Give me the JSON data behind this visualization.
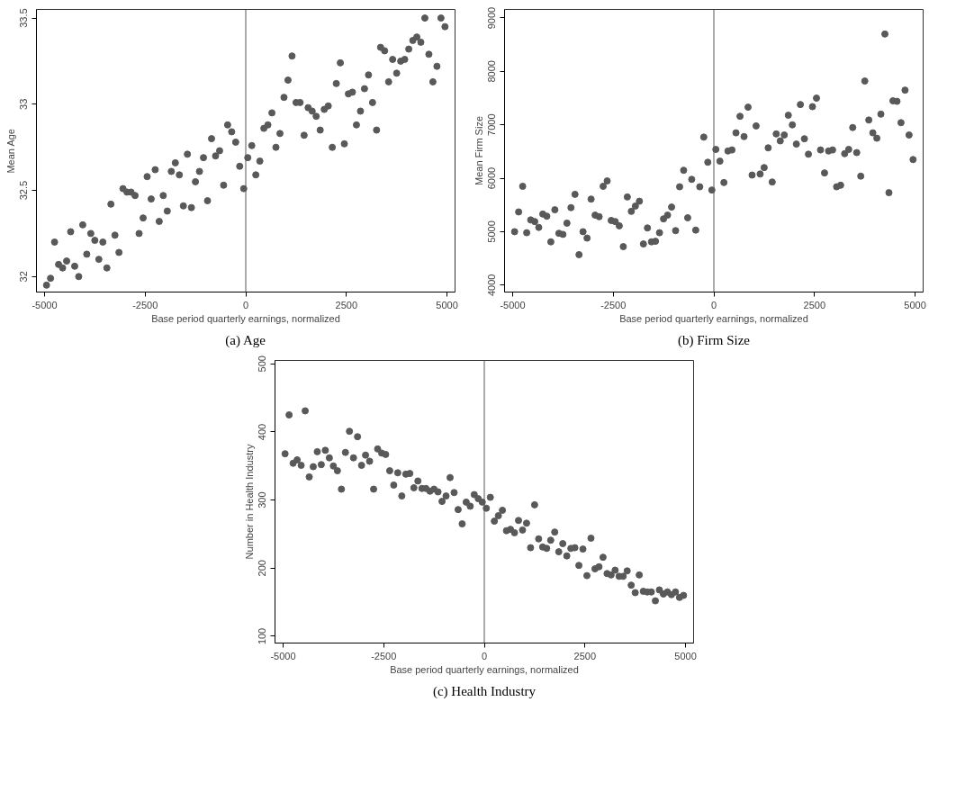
{
  "chart_data": [
    {
      "type": "scatter",
      "title": "(a) Age",
      "xlabel": "Base period quarterly earnings, normalized",
      "ylabel": "Mean Age",
      "marker": "circle",
      "xlim": [
        -5200,
        5200
      ],
      "xticks": [
        -5000,
        -2500,
        0,
        2500,
        5000
      ],
      "ylim": [
        31.91,
        33.55
      ],
      "yticks": [
        32,
        32.5,
        33,
        33.5
      ],
      "ref_lines": [
        {
          "axis": "x",
          "value": 0,
          "color": "#595959"
        }
      ],
      "x": [
        -4950,
        -4850,
        -4750,
        -4650,
        -4550,
        -4450,
        -4350,
        -4250,
        -4150,
        -4050,
        -3950,
        -3850,
        -3750,
        -3650,
        -3550,
        -3450,
        -3350,
        -3250,
        -3150,
        -3050,
        -2950,
        -2850,
        -2750,
        -2650,
        -2550,
        -2450,
        -2350,
        -2250,
        -2150,
        -2050,
        -1950,
        -1850,
        -1750,
        -1650,
        -1550,
        -1450,
        -1350,
        -1250,
        -1150,
        -1050,
        -950,
        -850,
        -750,
        -650,
        -550,
        -450,
        -350,
        -250,
        -150,
        -50,
        50,
        150,
        250,
        350,
        450,
        550,
        650,
        750,
        850,
        950,
        1050,
        1150,
        1250,
        1350,
        1450,
        1550,
        1650,
        1750,
        1850,
        1950,
        2050,
        2150,
        2250,
        2350,
        2450,
        2550,
        2650,
        2750,
        2850,
        2950,
        3050,
        3150,
        3250,
        3350,
        3450,
        3550,
        3650,
        3750,
        3850,
        3950,
        4050,
        4150,
        4250,
        4350,
        4450,
        4550,
        4650,
        4750,
        4850,
        4950
      ],
      "series": [
        {
          "color": "#595959",
          "values": [
            31.95,
            31.99,
            32.2,
            32.07,
            32.05,
            32.09,
            32.26,
            32.06,
            32.0,
            32.3,
            32.13,
            32.25,
            32.21,
            32.1,
            32.2,
            32.05,
            32.42,
            32.24,
            32.14,
            32.51,
            32.49,
            32.49,
            32.47,
            32.25,
            32.34,
            32.58,
            32.45,
            32.62,
            32.32,
            32.47,
            32.38,
            32.61,
            32.66,
            32.59,
            32.41,
            32.71,
            32.4,
            32.55,
            32.61,
            32.69,
            32.44,
            32.8,
            32.7,
            32.73,
            32.53,
            32.88,
            32.84,
            32.78,
            32.64,
            32.51,
            32.69,
            32.76,
            32.59,
            32.67,
            32.86,
            32.88,
            32.95,
            32.75,
            32.83,
            33.04,
            33.14,
            33.28,
            33.01,
            33.01,
            32.82,
            32.98,
            32.96,
            32.93,
            32.85,
            32.97,
            32.99,
            32.75,
            33.12,
            33.24,
            32.77,
            33.06,
            33.07,
            32.88,
            32.96,
            33.09,
            33.17,
            33.01,
            32.85,
            33.33,
            33.31,
            33.13,
            33.26,
            33.18,
            33.25,
            33.26,
            33.32,
            33.37,
            33.39,
            33.36,
            33.5,
            33.29,
            33.13,
            33.22,
            33.5,
            33.45
          ]
        }
      ]
    },
    {
      "type": "scatter",
      "title": "(b) Firm Size",
      "xlabel": "Base period quarterly earnings, normalized",
      "ylabel": "Mean Firm Size",
      "marker": "circle",
      "xlim": [
        -5200,
        5200
      ],
      "xticks": [
        -5000,
        -2500,
        0,
        2500,
        5000
      ],
      "ylim": [
        3870,
        9160
      ],
      "yticks": [
        4000,
        5000,
        6000,
        7000,
        8000,
        9000
      ],
      "ref_lines": [
        {
          "axis": "x",
          "value": 0,
          "color": "#595959"
        }
      ],
      "x": [
        -4950,
        -4850,
        -4750,
        -4650,
        -4550,
        -4450,
        -4350,
        -4250,
        -4150,
        -4050,
        -3950,
        -3850,
        -3750,
        -3650,
        -3550,
        -3450,
        -3350,
        -3250,
        -3150,
        -3050,
        -2950,
        -2850,
        -2750,
        -2650,
        -2550,
        -2450,
        -2350,
        -2250,
        -2150,
        -2050,
        -1950,
        -1850,
        -1750,
        -1650,
        -1550,
        -1450,
        -1350,
        -1250,
        -1150,
        -1050,
        -950,
        -850,
        -750,
        -650,
        -550,
        -450,
        -350,
        -250,
        -150,
        -50,
        50,
        150,
        250,
        350,
        450,
        550,
        650,
        750,
        850,
        950,
        1050,
        1150,
        1250,
        1350,
        1450,
        1550,
        1650,
        1750,
        1850,
        1950,
        2050,
        2150,
        2250,
        2350,
        2450,
        2550,
        2650,
        2750,
        2850,
        2950,
        3050,
        3150,
        3250,
        3350,
        3450,
        3550,
        3650,
        3750,
        3850,
        3950,
        4050,
        4150,
        4250,
        4350,
        4450,
        4550,
        4650,
        4750,
        4850,
        4950
      ],
      "series": [
        {
          "color": "#595959",
          "values": [
            5000,
            5370,
            5850,
            4980,
            5220,
            5190,
            5080,
            5330,
            5290,
            4810,
            5410,
            4970,
            4950,
            5160,
            5450,
            5700,
            4570,
            5000,
            4880,
            5610,
            5310,
            5280,
            5850,
            5950,
            5210,
            5190,
            5110,
            4720,
            5650,
            5380,
            5480,
            5570,
            4770,
            5070,
            4810,
            4820,
            4980,
            5240,
            5310,
            5460,
            5020,
            5840,
            6150,
            5260,
            5980,
            5030,
            5840,
            6770,
            6300,
            5780,
            6540,
            6320,
            5920,
            6510,
            6530,
            6850,
            7160,
            6780,
            7330,
            6060,
            6980,
            6080,
            6200,
            6570,
            5930,
            6830,
            6700,
            6810,
            7180,
            7000,
            6640,
            7380,
            6740,
            6450,
            7340,
            7500,
            6530,
            6100,
            6510,
            6530,
            5840,
            5870,
            6460,
            6540,
            6950,
            6480,
            6040,
            7820,
            7090,
            6850,
            6750,
            7200,
            8700,
            5730,
            7450,
            7440,
            7040,
            7650,
            6810,
            6350
          ]
        }
      ]
    },
    {
      "type": "scatter",
      "title": "(c) Health Industry",
      "xlabel": "Base period quarterly earnings, normalized",
      "ylabel": "Number in Health Industry",
      "marker": "circle",
      "xlim": [
        -5200,
        5200
      ],
      "xticks": [
        -5000,
        -2500,
        0,
        2500,
        5000
      ],
      "ylim": [
        90,
        505
      ],
      "yticks": [
        100,
        200,
        300,
        400,
        500
      ],
      "ref_lines": [
        {
          "axis": "x",
          "value": 0,
          "color": "#595959"
        }
      ],
      "x": [
        -4950,
        -4850,
        -4750,
        -4650,
        -4550,
        -4450,
        -4350,
        -4250,
        -4150,
        -4050,
        -3950,
        -3850,
        -3750,
        -3650,
        -3550,
        -3450,
        -3350,
        -3250,
        -3150,
        -3050,
        -2950,
        -2850,
        -2750,
        -2650,
        -2550,
        -2450,
        -2350,
        -2250,
        -2150,
        -2050,
        -1950,
        -1850,
        -1750,
        -1650,
        -1550,
        -1450,
        -1350,
        -1250,
        -1150,
        -1050,
        -950,
        -850,
        -750,
        -650,
        -550,
        -450,
        -350,
        -250,
        -150,
        -50,
        50,
        150,
        250,
        350,
        450,
        550,
        650,
        750,
        850,
        950,
        1050,
        1150,
        1250,
        1350,
        1450,
        1550,
        1650,
        1750,
        1850,
        1950,
        2050,
        2150,
        2250,
        2350,
        2450,
        2550,
        2650,
        2750,
        2850,
        2950,
        3050,
        3150,
        3250,
        3350,
        3450,
        3550,
        3650,
        3750,
        3850,
        3950,
        4050,
        4150,
        4250,
        4350,
        4450,
        4550,
        4650,
        4750,
        4850,
        4950
      ],
      "series": [
        {
          "color": "#595959",
          "values": [
            368,
            425,
            354,
            359,
            351,
            431,
            334,
            349,
            371,
            352,
            373,
            362,
            350,
            343,
            316,
            370,
            401,
            362,
            393,
            351,
            366,
            357,
            316,
            375,
            369,
            367,
            343,
            322,
            340,
            306,
            338,
            339,
            318,
            328,
            317,
            317,
            313,
            316,
            312,
            298,
            306,
            333,
            311,
            286,
            265,
            297,
            291,
            308,
            302,
            297,
            288,
            304,
            269,
            277,
            285,
            255,
            257,
            252,
            270,
            256,
            266,
            230,
            293,
            243,
            231,
            229,
            241,
            253,
            224,
            236,
            218,
            229,
            230,
            204,
            228,
            189,
            244,
            199,
            202,
            216,
            192,
            190,
            197,
            188,
            188,
            196,
            175,
            164,
            190,
            166,
            165,
            165,
            152,
            168,
            162,
            165,
            161,
            165,
            157,
            160
          ]
        }
      ]
    }
  ]
}
